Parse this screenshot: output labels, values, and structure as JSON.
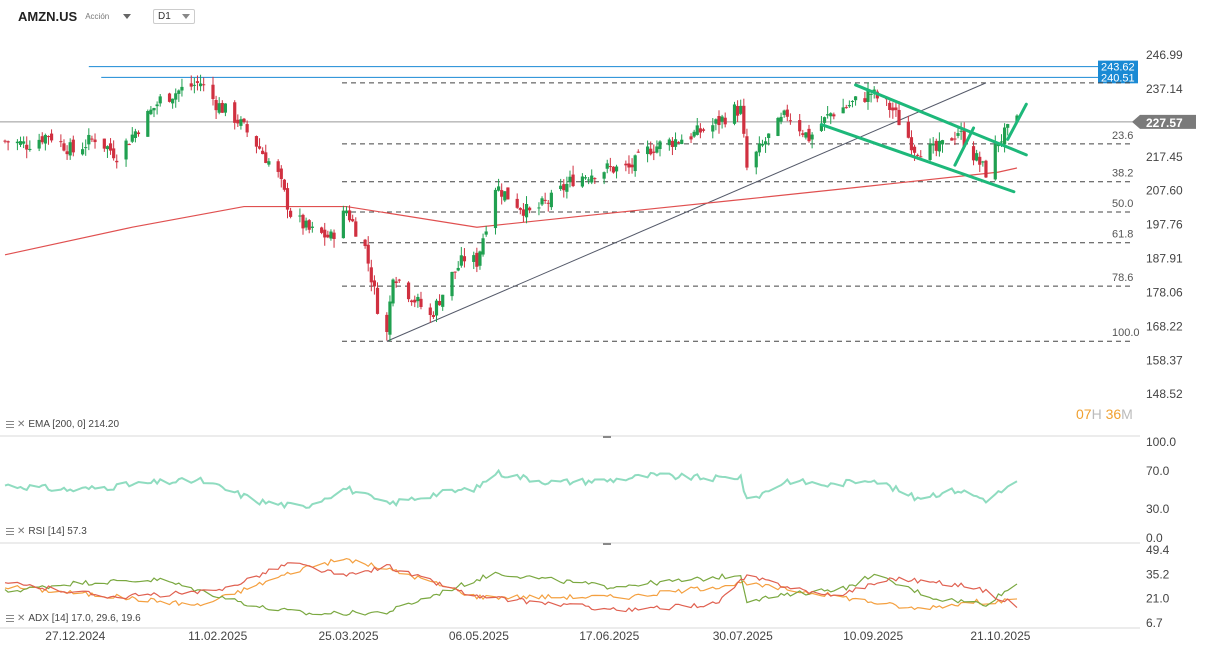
{
  "header": {
    "symbol": "AMZN.US",
    "asset_type": "Acción",
    "timeframe": "D1"
  },
  "price_axis": {
    "ticks": [
      "246.99",
      "237.14",
      "217.45",
      "207.60",
      "197.76",
      "187.91",
      "178.06",
      "168.22",
      "158.37",
      "148.52"
    ],
    "current_price": "227.57",
    "levels": [
      "243.62",
      "240.51"
    ]
  },
  "fib_levels": [
    "23.6",
    "38.2",
    "50.0",
    "61.8",
    "78.6",
    "100.0"
  ],
  "time_axis": [
    "27.12.2024",
    "11.02.2025",
    "25.03.2025",
    "06.05.2025",
    "17.06.2025",
    "30.07.2025",
    "10.09.2025",
    "21.10.2025"
  ],
  "indicators": {
    "ema": "EMA [200, 0]  214.20",
    "rsi": "RSI [14]  57.3",
    "adx": "ADX [14]  17.0,  29.6,  19.6"
  },
  "rsi_axis": [
    "100.0",
    "70.0",
    "30.0",
    "0.0"
  ],
  "adx_axis": [
    "49.4",
    "35.2",
    "21.0",
    "6.7"
  ],
  "timer": {
    "hours": "07",
    "h_unit": "H",
    "minutes": "36",
    "m_unit": "M"
  },
  "colors": {
    "up": "#20a050",
    "down": "#d03040",
    "ema": "#e05050",
    "rsi": "#8fdcc0",
    "channel": "#1db87a",
    "resistance": "#1a8ad4",
    "adx_green": "#7aa840",
    "adx_orange": "#f4a040",
    "adx_red": "#e06050",
    "current_price_tag": "#7a7a7a"
  },
  "chart_data": {
    "type": "candlestick",
    "interval": "D1",
    "y_unit": "USD",
    "ylim": [
      148.52,
      246.99
    ],
    "x_range": [
      "2024-12-05",
      "2025-10-27"
    ],
    "current_price": 227.57,
    "candles_note": "approximate path",
    "close_path": [
      [
        "2024-12-05",
        222
      ],
      [
        "2024-12-12",
        221
      ],
      [
        "2024-12-19",
        224
      ],
      [
        "2024-12-27",
        219
      ],
      [
        "2025-01-03",
        223
      ],
      [
        "2025-01-10",
        218
      ],
      [
        "2025-01-17",
        226
      ],
      [
        "2025-01-24",
        234
      ],
      [
        "2025-01-31",
        237
      ],
      [
        "2025-02-06",
        239
      ],
      [
        "2025-02-11",
        233
      ],
      [
        "2025-02-18",
        228
      ],
      [
        "2025-02-25",
        220
      ],
      [
        "2025-03-03",
        212
      ],
      [
        "2025-03-07",
        201
      ],
      [
        "2025-03-13",
        196
      ],
      [
        "2025-03-20",
        194
      ],
      [
        "2025-03-25",
        202
      ],
      [
        "2025-03-31",
        191
      ],
      [
        "2025-04-04",
        174
      ],
      [
        "2025-04-07",
        166
      ],
      [
        "2025-04-09",
        184
      ],
      [
        "2025-04-14",
        178
      ],
      [
        "2025-04-21",
        171
      ],
      [
        "2025-04-28",
        183
      ],
      [
        "2025-05-02",
        188
      ],
      [
        "2025-05-06",
        187
      ],
      [
        "2025-05-12",
        209
      ],
      [
        "2025-05-16",
        206
      ],
      [
        "2025-05-23",
        201
      ],
      [
        "2025-05-30",
        205
      ],
      [
        "2025-06-06",
        211
      ],
      [
        "2025-06-13",
        213
      ],
      [
        "2025-06-17",
        214
      ],
      [
        "2025-06-24",
        214
      ],
      [
        "2025-07-01",
        220
      ],
      [
        "2025-07-08",
        222
      ],
      [
        "2025-07-15",
        224
      ],
      [
        "2025-07-22",
        227
      ],
      [
        "2025-07-28",
        231
      ],
      [
        "2025-07-30",
        231
      ],
      [
        "2025-08-01",
        214
      ],
      [
        "2025-08-07",
        222
      ],
      [
        "2025-08-14",
        230
      ],
      [
        "2025-08-21",
        223
      ],
      [
        "2025-08-28",
        230
      ],
      [
        "2025-09-04",
        233
      ],
      [
        "2025-09-10",
        236
      ],
      [
        "2025-09-17",
        231
      ],
      [
        "2025-09-24",
        220
      ],
      [
        "2025-10-01",
        219
      ],
      [
        "2025-10-08",
        225
      ],
      [
        "2025-10-13",
        218
      ],
      [
        "2025-10-17",
        213
      ],
      [
        "2025-10-21",
        222
      ],
      [
        "2025-10-27",
        227.57
      ]
    ],
    "ema_200": [
      [
        "2024-12-05",
        189
      ],
      [
        "2025-01-15",
        197
      ],
      [
        "2025-02-20",
        203
      ],
      [
        "2025-03-25",
        203
      ],
      [
        "2025-05-06",
        197
      ],
      [
        "2025-06-17",
        201
      ],
      [
        "2025-07-30",
        205
      ],
      [
        "2025-09-10",
        209
      ],
      [
        "2025-10-21",
        213
      ],
      [
        "2025-10-27",
        214.2
      ]
    ],
    "horizontal_levels": [
      243.62,
      240.51
    ],
    "fibonacci": {
      "high": 238.9,
      "low": 163.9,
      "levels": [
        {
          "label": "23.6",
          "value": 221.2
        },
        {
          "label": "38.2",
          "value": 210.2
        },
        {
          "label": "50.0",
          "value": 201.4
        },
        {
          "label": "61.8",
          "value": 192.5
        },
        {
          "label": "78.6",
          "value": 179.9
        },
        {
          "label": "100.0",
          "value": 163.9
        }
      ]
    },
    "trendline": {
      "from": [
        "2025-04-07",
        163.9
      ],
      "to": [
        "2025-10-17",
        238.9
      ]
    },
    "channel": {
      "upper": {
        "from": [
          "2025-09-05",
          238.3
        ],
        "to": [
          "2025-10-30",
          218.0
        ]
      },
      "lower": {
        "from": [
          "2025-08-25",
          226.8
        ],
        "to": [
          "2025-10-26",
          207.3
        ]
      },
      "arrows": [
        {
          "from": [
            "2025-10-07",
            215.0
          ],
          "to": [
            "2025-10-13",
            225.8
          ]
        },
        {
          "from": [
            "2025-10-24",
            222.5
          ],
          "to": [
            "2025-10-30",
            232.7
          ]
        }
      ]
    },
    "rsi": {
      "period": 14,
      "last": 57.3,
      "ylim": [
        0,
        100
      ],
      "path": [
        [
          "2024-12-05",
          55
        ],
        [
          "2024-12-27",
          50
        ],
        [
          "2025-01-24",
          58
        ],
        [
          "2025-02-06",
          60
        ],
        [
          "2025-02-25",
          38
        ],
        [
          "2025-03-11",
          32
        ],
        [
          "2025-03-25",
          52
        ],
        [
          "2025-04-07",
          35
        ],
        [
          "2025-04-21",
          45
        ],
        [
          "2025-05-06",
          52
        ],
        [
          "2025-05-12",
          68
        ],
        [
          "2025-05-30",
          58
        ],
        [
          "2025-06-17",
          60
        ],
        [
          "2025-07-01",
          65
        ],
        [
          "2025-07-22",
          62
        ],
        [
          "2025-07-30",
          64
        ],
        [
          "2025-08-01",
          38
        ],
        [
          "2025-08-14",
          60
        ],
        [
          "2025-08-28",
          55
        ],
        [
          "2025-09-10",
          62
        ],
        [
          "2025-09-24",
          42
        ],
        [
          "2025-10-08",
          50
        ],
        [
          "2025-10-17",
          40
        ],
        [
          "2025-10-27",
          57.3
        ]
      ]
    },
    "adx": {
      "period": 14,
      "values": [
        17.0,
        29.6,
        19.6
      ],
      "ylim": [
        6.7,
        49.4
      ],
      "series": [
        {
          "key": "adx",
          "color": "#f4a040",
          "path": [
            [
              "2024-12-05",
              28
            ],
            [
              "2025-01-10",
              22
            ],
            [
              "2025-02-06",
              17
            ],
            [
              "2025-03-13",
              40
            ],
            [
              "2025-03-25",
              44
            ],
            [
              "2025-04-14",
              35
            ],
            [
              "2025-05-06",
              22
            ],
            [
              "2025-05-30",
              22
            ],
            [
              "2025-06-24",
              22
            ],
            [
              "2025-07-22",
              28
            ],
            [
              "2025-07-30",
              30
            ],
            [
              "2025-08-28",
              23
            ],
            [
              "2025-09-24",
              15
            ],
            [
              "2025-10-13",
              19
            ],
            [
              "2025-10-27",
              19.6
            ]
          ]
        },
        {
          "key": "di_plus",
          "color": "#7aa840",
          "path": [
            [
              "2024-12-05",
              25
            ],
            [
              "2024-12-27",
              30
            ],
            [
              "2025-01-24",
              32
            ],
            [
              "2025-02-25",
              16
            ],
            [
              "2025-03-13",
              12
            ],
            [
              "2025-04-07",
              13
            ],
            [
              "2025-05-12",
              36
            ],
            [
              "2025-06-17",
              28
            ],
            [
              "2025-07-15",
              32
            ],
            [
              "2025-07-30",
              35
            ],
            [
              "2025-08-01",
              20
            ],
            [
              "2025-09-04",
              28
            ],
            [
              "2025-09-10",
              35
            ],
            [
              "2025-10-01",
              21
            ],
            [
              "2025-10-17",
              18
            ],
            [
              "2025-10-27",
              29.6
            ]
          ]
        },
        {
          "key": "di_minus",
          "color": "#e06050",
          "path": [
            [
              "2024-12-05",
              30
            ],
            [
              "2025-01-10",
              22
            ],
            [
              "2025-02-11",
              25
            ],
            [
              "2025-03-07",
              42
            ],
            [
              "2025-03-25",
              34
            ],
            [
              "2025-04-07",
              40
            ],
            [
              "2025-05-06",
              22
            ],
            [
              "2025-05-30",
              18
            ],
            [
              "2025-06-24",
              14
            ],
            [
              "2025-07-22",
              18
            ],
            [
              "2025-08-01",
              34
            ],
            [
              "2025-08-28",
              22
            ],
            [
              "2025-09-17",
              33
            ],
            [
              "2025-10-13",
              28
            ],
            [
              "2025-10-27",
              17.0
            ]
          ]
        }
      ]
    }
  }
}
